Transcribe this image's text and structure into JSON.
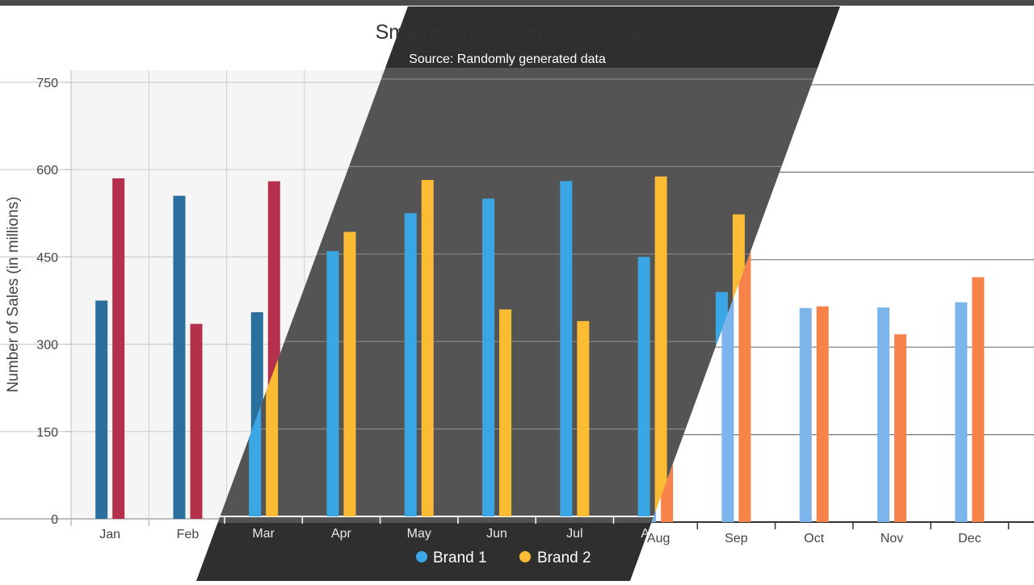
{
  "chart_data": {
    "type": "bar",
    "title": "Smartphone Shipments, 2012",
    "subtitle": "Source: Randomly generated data",
    "ylabel": "Number of Sales (in millions)",
    "xlabel": "",
    "ylim": [
      0,
      750
    ],
    "yticks": [
      0,
      150,
      300,
      450,
      600,
      750
    ],
    "categories": [
      "Jan",
      "Feb",
      "Mar",
      "Apr",
      "May",
      "Jun",
      "Jul",
      "Aug",
      "Sep",
      "Oct",
      "Nov",
      "Dec"
    ],
    "series": [
      {
        "name": "Brand 1",
        "values": [
          375,
          555,
          355,
          455,
          520,
          545,
          575,
          445,
          385,
          367,
          368,
          377
        ]
      },
      {
        "name": "Brand 2",
        "values": [
          585,
          335,
          580,
          488,
          577,
          355,
          335,
          583,
          518,
          370,
          322,
          420
        ]
      }
    ],
    "legend": {
      "position": "bottom",
      "items": [
        "Brand 1",
        "Brand 2"
      ]
    },
    "grid": true,
    "themes": {
      "light_grid": {
        "brand1": "#2b6f9e",
        "brand2": "#b5304a",
        "text": "#444444",
        "grid": "#cfcfcf",
        "plot_bg": "#f5f5f5"
      },
      "dark": {
        "brand1": "#3aa7e4",
        "brand2": "#fbbc34",
        "text": "#e8e8e8",
        "grid": "#8a8a8a",
        "bg": "#545454"
      },
      "light": {
        "brand1": "#7cb5ec",
        "brand2": "#f7824a",
        "text": "#444444",
        "grid": "#777777",
        "bg": "#ffffff"
      }
    }
  }
}
